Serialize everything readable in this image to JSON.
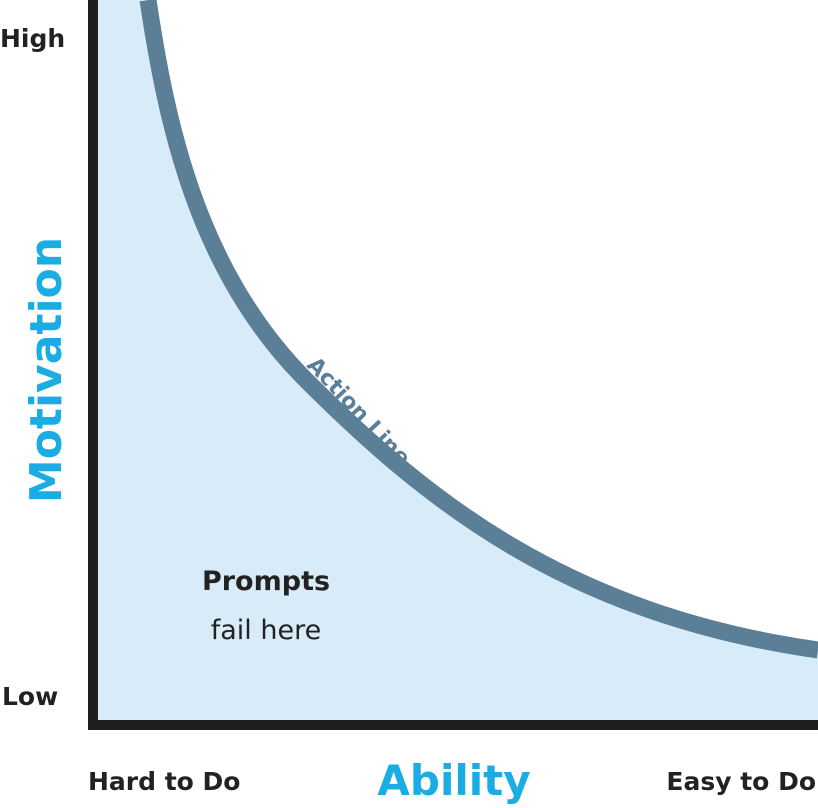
{
  "diagram": {
    "y_axis": {
      "title": "Motivation",
      "high_label": "High",
      "low_label": "Low"
    },
    "x_axis": {
      "title": "Ability",
      "left_label": "Hard to Do",
      "right_label": "Easy to Do"
    },
    "curve_label": "Action Line",
    "region_label": {
      "line1": "Prompts",
      "line2": "fail here"
    }
  },
  "colors": {
    "axis_title": "#1aace3",
    "axis": "#1f1f1f",
    "curve": "#5b7f97",
    "fill": "#d8ebf8",
    "text": "#222222",
    "background": "#ffffff"
  }
}
